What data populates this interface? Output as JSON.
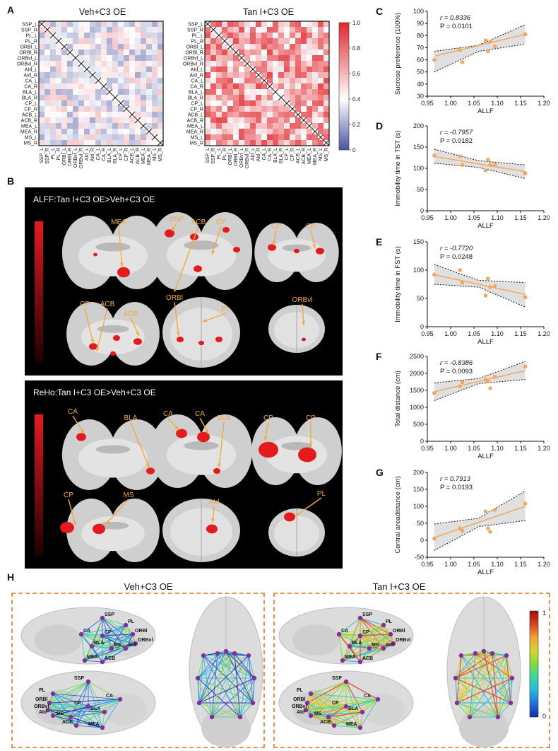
{
  "panels": {
    "A": "A",
    "B": "B",
    "C": "C",
    "D": "D",
    "E": "E",
    "F": "F",
    "G": "G",
    "H": "H"
  },
  "panel_a": {
    "left_title": "Veh+C3 OE",
    "right_title": "Tan I+C3 OE",
    "regions": [
      "SSP_L",
      "SSP_R",
      "PL_L",
      "PL_R",
      "ORBl_L",
      "ORBl_R",
      "ORBvl_L",
      "ORBvl_R",
      "AId_L",
      "AId_R",
      "CA_L",
      "CA_R",
      "BLA_L",
      "BLA_R",
      "CP_L",
      "CP_R",
      "ACB_L",
      "ACB_R",
      "MEA_L",
      "MEA_R",
      "MS_L",
      "MS_R"
    ],
    "colorbar_ticks": [
      "1.0",
      "0.8",
      "0.6",
      "0.4",
      "0.2",
      "0"
    ],
    "colors": {
      "high": "#e0262b",
      "mid": "#ffffff",
      "low": "#4a55a2"
    }
  },
  "panel_b": {
    "alff_title": "ALFF:Tan I+C3 OE>Veh+C3 OE",
    "reho_title": "ReHo:Tan I+C3 OE>Veh+C3 OE",
    "alff_labels": [
      "MEA",
      "SSP",
      "ACB",
      "CP",
      "CP",
      "CP",
      "CP",
      "ACB",
      "ACB",
      "ORBl",
      "PL",
      "ORBvl"
    ],
    "reho_labels": [
      "CA",
      "BLA",
      "CA",
      "CA",
      "BLA",
      "CP",
      "CP",
      "CP",
      "MS",
      "AId",
      "PL"
    ],
    "label_color": "#f3a93a",
    "blob_color": "#e41a1c"
  },
  "chart_data": [
    {
      "type": "scatter",
      "panel": "C",
      "xlabel": "ALLF",
      "ylabel": "Sucrose preference (100%)",
      "annotation_r": "r = 0.8336",
      "annotation_p": "P = 0.0101",
      "xlim": [
        0.95,
        1.2
      ],
      "ylim": [
        30,
        100
      ],
      "xticks": [
        "0.95",
        "1.00",
        "1.05",
        "1.10",
        "1.15",
        "1.20"
      ],
      "yticks": [
        "30",
        "40",
        "50",
        "60",
        "70",
        "80",
        "90",
        "100"
      ],
      "x": [
        0.965,
        1.02,
        1.025,
        1.075,
        1.08,
        1.085,
        1.095,
        1.16
      ],
      "y": [
        60,
        68,
        58,
        76,
        67,
        75,
        71,
        81
      ],
      "fit": [
        [
          0.965,
          63
        ],
        [
          1.16,
          81
        ]
      ],
      "band_upper": [
        [
          0.965,
          67
        ],
        [
          1.06,
          72
        ],
        [
          1.16,
          89
        ]
      ],
      "band_lower": [
        [
          0.965,
          50
        ],
        [
          1.06,
          67
        ],
        [
          1.16,
          73
        ]
      ]
    },
    {
      "type": "scatter",
      "panel": "D",
      "xlabel": "ALLF",
      "ylabel": "Immobility time in TST (s)",
      "annotation_r": "r = -0.7957",
      "annotation_p": "P = 0.0182",
      "xlim": [
        0.95,
        1.2
      ],
      "ylim": [
        0,
        200
      ],
      "xticks": [
        "0.95",
        "1.00",
        "1.05",
        "1.10",
        "1.15",
        "1.20"
      ],
      "yticks": [
        "0",
        "50",
        "100",
        "150",
        "200"
      ],
      "x": [
        0.965,
        1.02,
        1.025,
        1.075,
        1.08,
        1.085,
        1.095,
        1.16
      ],
      "y": [
        130,
        128,
        108,
        95,
        120,
        108,
        108,
        88
      ],
      "fit": [
        [
          0.965,
          128
        ],
        [
          1.16,
          92
        ]
      ],
      "band_upper": [
        [
          0.965,
          145
        ],
        [
          1.06,
          118
        ],
        [
          1.16,
          108
        ]
      ],
      "band_lower": [
        [
          0.965,
          112
        ],
        [
          1.06,
          102
        ],
        [
          1.16,
          76
        ]
      ]
    },
    {
      "type": "scatter",
      "panel": "E",
      "xlabel": "ALLF",
      "ylabel": "Immobility time in FST (s)",
      "annotation_r": "r = -0.7720",
      "annotation_p": "P = 0.0248",
      "xlim": [
        0.95,
        1.2
      ],
      "ylim": [
        0,
        150
      ],
      "xticks": [
        "0.95",
        "1.00",
        "1.05",
        "1.10",
        "1.15",
        "1.20"
      ],
      "yticks": [
        "0",
        "50",
        "100",
        "150"
      ],
      "x": [
        0.965,
        1.02,
        1.025,
        1.075,
        1.08,
        1.085,
        1.095,
        1.16
      ],
      "y": [
        92,
        100,
        78,
        55,
        85,
        70,
        72,
        52
      ],
      "fit": [
        [
          0.965,
          92
        ],
        [
          1.16,
          57
        ]
      ],
      "band_upper": [
        [
          0.965,
          110
        ],
        [
          1.06,
          82
        ],
        [
          1.16,
          78
        ]
      ],
      "band_lower": [
        [
          0.965,
          75
        ],
        [
          1.06,
          70
        ],
        [
          1.16,
          35
        ]
      ]
    },
    {
      "type": "scatter",
      "panel": "F",
      "xlabel": "ALLF",
      "ylabel": "Total distance (cm)",
      "annotation_r": "r = -0.8386",
      "annotation_p": "P = 0.0093",
      "xlim": [
        0.95,
        1.2
      ],
      "ylim": [
        0,
        2500
      ],
      "xticks": [
        "0.95",
        "1.00",
        "1.05",
        "1.10",
        "1.15",
        "1.20"
      ],
      "yticks": [
        "0",
        "500",
        "1000",
        "1500",
        "2000",
        "2500"
      ],
      "x": [
        0.965,
        1.02,
        1.025,
        1.075,
        1.08,
        1.085,
        1.095,
        1.16
      ],
      "y": [
        1420,
        1620,
        1740,
        1820,
        1760,
        1560,
        1900,
        2200
      ],
      "fit": [
        [
          0.965,
          1460
        ],
        [
          1.16,
          2080
        ]
      ],
      "band_upper": [
        [
          0.965,
          1720
        ],
        [
          1.06,
          1850
        ],
        [
          1.16,
          2350
        ]
      ],
      "band_lower": [
        [
          0.965,
          1200
        ],
        [
          1.06,
          1700
        ],
        [
          1.16,
          1820
        ]
      ]
    },
    {
      "type": "scatter",
      "panel": "G",
      "xlabel": "ALLF",
      "ylabel": "Central areadistance (cm)",
      "annotation_r": "r = 0.7913",
      "annotation_p": "P = 0.0193",
      "xlim": [
        0.95,
        1.2
      ],
      "ylim": [
        -50,
        200
      ],
      "xticks": [
        "0.95",
        "1.00",
        "1.05",
        "1.10",
        "1.15",
        "1.20"
      ],
      "yticks": [
        "-50",
        "0",
        "50",
        "100",
        "150",
        "200"
      ],
      "x": [
        0.965,
        1.02,
        1.025,
        1.075,
        1.08,
        1.085,
        1.095,
        1.16
      ],
      "y": [
        5,
        35,
        28,
        85,
        35,
        25,
        90,
        108
      ],
      "fit": [
        [
          0.965,
          8
        ],
        [
          1.16,
          100
        ]
      ],
      "band_upper": [
        [
          0.965,
          48
        ],
        [
          1.06,
          65
        ],
        [
          1.16,
          145
        ]
      ],
      "band_lower": [
        [
          0.965,
          -30
        ],
        [
          1.06,
          40
        ],
        [
          1.16,
          58
        ]
      ]
    }
  ],
  "scatter_style": {
    "point_color": "#f0a860",
    "line_color": "#f0a860",
    "band_color": "#d6d6d6"
  },
  "panel_h": {
    "left_title": "Veh+C3 OE",
    "right_title": "Tan I+C3 OE",
    "node_labels": [
      "SSP",
      "PL",
      "ORBl",
      "ORBvl",
      "AId",
      "CA",
      "CP",
      "BLA",
      "MS",
      "MEA",
      "ACB"
    ],
    "colorbar_top": "1",
    "colorbar_bottom": "0",
    "dash_color": "#e9924a"
  }
}
